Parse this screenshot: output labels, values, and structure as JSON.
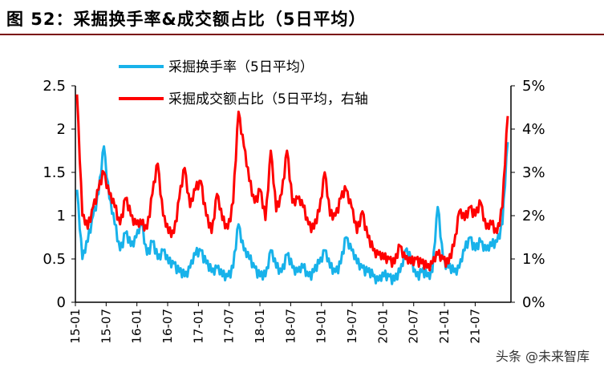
{
  "title": "图 52：采掘换手率&成交额占比（5日平均）",
  "watermark": "头条 @未来智库",
  "colors": {
    "turnover": "#18b2ea",
    "share": "#ff0000",
    "axis": "#000000"
  },
  "chart_data": {
    "type": "line",
    "legend_placement": "top-left",
    "grid": false,
    "x_categories": [
      "15-01",
      "15-07",
      "16-01",
      "16-07",
      "17-01",
      "17-07",
      "18-01",
      "18-07",
      "19-01",
      "19-07",
      "20-01",
      "20-07",
      "21-01",
      "21-07"
    ],
    "ylim_left": [
      0,
      2.5
    ],
    "ylim_right": [
      0,
      5
    ],
    "yticks_left": [
      "0",
      "0.5",
      "1",
      "1.5",
      "2",
      "2.5"
    ],
    "yticks_right": [
      "0%",
      "1%",
      "2%",
      "3%",
      "4%",
      "5%"
    ],
    "series": [
      {
        "name": "采掘换手率（5日平均）",
        "axis": "left",
        "x": [
          "15-01",
          "15-02",
          "15-03",
          "15-04",
          "15-05",
          "15-06",
          "15-07",
          "15-08",
          "15-09",
          "15-10",
          "15-11",
          "15-12",
          "16-01",
          "16-02",
          "16-03",
          "16-04",
          "16-05",
          "16-06",
          "16-07",
          "16-08",
          "16-09",
          "16-10",
          "16-11",
          "16-12",
          "17-01",
          "17-02",
          "17-03",
          "17-04",
          "17-05",
          "17-06",
          "17-07",
          "17-08",
          "17-09",
          "17-10",
          "17-11",
          "17-12",
          "18-01",
          "18-02",
          "18-03",
          "18-04",
          "18-05",
          "18-06",
          "18-07",
          "18-08",
          "18-09",
          "18-10",
          "18-11",
          "18-12",
          "19-01",
          "19-02",
          "19-03",
          "19-04",
          "19-05",
          "19-06",
          "19-07",
          "19-08",
          "19-09",
          "19-10",
          "19-11",
          "19-12",
          "20-01",
          "20-02",
          "20-03",
          "20-04",
          "20-05",
          "20-06",
          "20-07",
          "20-08",
          "20-09",
          "20-10",
          "20-11",
          "20-12",
          "21-01",
          "21-02",
          "21-03",
          "21-04",
          "21-05",
          "21-06",
          "21-07",
          "21-08",
          "21-09"
        ],
        "values": [
          1.3,
          0.5,
          0.7,
          1.0,
          1.25,
          1.8,
          1.2,
          0.9,
          0.6,
          0.8,
          0.65,
          0.75,
          0.9,
          0.55,
          0.7,
          0.5,
          0.6,
          0.45,
          0.45,
          0.35,
          0.3,
          0.4,
          0.55,
          0.6,
          0.45,
          0.35,
          0.4,
          0.3,
          0.3,
          0.4,
          0.9,
          0.6,
          0.5,
          0.4,
          0.3,
          0.3,
          0.6,
          0.4,
          0.35,
          0.55,
          0.4,
          0.35,
          0.4,
          0.3,
          0.35,
          0.45,
          0.6,
          0.4,
          0.35,
          0.45,
          0.75,
          0.6,
          0.45,
          0.4,
          0.35,
          0.3,
          0.25,
          0.3,
          0.3,
          0.25,
          0.35,
          0.6,
          0.5,
          0.3,
          0.35,
          0.3,
          0.35,
          1.1,
          0.5,
          0.4,
          0.35,
          0.4,
          0.6,
          0.75,
          0.6,
          0.7,
          0.6,
          0.65,
          0.7,
          0.9,
          1.85
        ]
      },
      {
        "name": "采掘成交额占比（5日平均，右轴",
        "axis": "right",
        "x": [
          "15-01",
          "15-02",
          "15-03",
          "15-04",
          "15-05",
          "15-06",
          "15-07",
          "15-08",
          "15-09",
          "15-10",
          "15-11",
          "15-12",
          "16-01",
          "16-02",
          "16-03",
          "16-04",
          "16-05",
          "16-06",
          "16-07",
          "16-08",
          "16-09",
          "16-10",
          "16-11",
          "16-12",
          "17-01",
          "17-02",
          "17-03",
          "17-04",
          "17-05",
          "17-06",
          "17-07",
          "17-08",
          "17-09",
          "17-10",
          "17-11",
          "17-12",
          "18-01",
          "18-02",
          "18-03",
          "18-04",
          "18-05",
          "18-06",
          "18-07",
          "18-08",
          "18-09",
          "18-10",
          "18-11",
          "18-12",
          "19-01",
          "19-02",
          "19-03",
          "19-04",
          "19-05",
          "19-06",
          "19-07",
          "19-08",
          "19-09",
          "19-10",
          "19-11",
          "19-12",
          "20-01",
          "20-02",
          "20-03",
          "20-04",
          "20-05",
          "20-06",
          "20-07",
          "20-08",
          "20-09",
          "20-10",
          "20-11",
          "20-12",
          "21-01",
          "21-02",
          "21-03",
          "21-04",
          "21-05",
          "21-06",
          "21-07",
          "21-08",
          "21-09"
        ],
        "values": [
          4.8,
          2.0,
          1.7,
          2.2,
          2.6,
          3.0,
          2.5,
          2.2,
          1.8,
          2.4,
          2.0,
          1.8,
          1.8,
          1.7,
          2.5,
          3.2,
          2.0,
          1.6,
          1.6,
          2.4,
          3.1,
          2.2,
          2.6,
          2.8,
          2.0,
          1.6,
          2.5,
          1.9,
          1.7,
          2.3,
          4.4,
          3.6,
          2.8,
          2.3,
          2.6,
          1.9,
          3.5,
          2.1,
          2.5,
          3.5,
          2.3,
          2.4,
          2.2,
          1.8,
          1.7,
          2.1,
          3.0,
          2.0,
          2.0,
          2.4,
          2.6,
          2.2,
          1.6,
          2.1,
          1.5,
          1.2,
          1.1,
          1.0,
          1.0,
          0.9,
          1.3,
          1.0,
          0.9,
          1.0,
          0.9,
          0.8,
          0.9,
          1.1,
          1.0,
          0.9,
          1.3,
          2.1,
          1.9,
          2.2,
          2.0,
          2.3,
          1.7,
          1.8,
          1.6,
          2.2,
          4.3
        ]
      }
    ]
  }
}
